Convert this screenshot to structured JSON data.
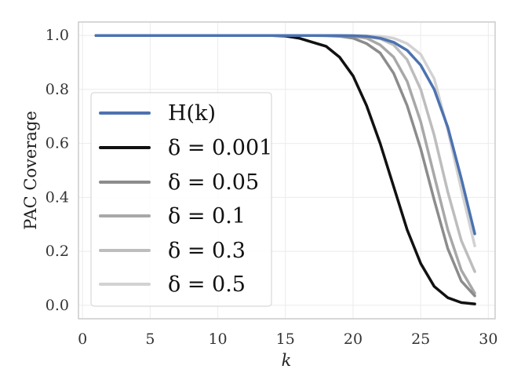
{
  "chart_data": {
    "type": "line",
    "title": "",
    "xlabel": "k",
    "ylabel": "PAC Coverage",
    "xlim": [
      -0.3,
      30.5
    ],
    "ylim": [
      -0.05,
      1.05
    ],
    "xticks": [
      0,
      5,
      10,
      15,
      20,
      25,
      30
    ],
    "yticks": [
      0.0,
      0.2,
      0.4,
      0.6,
      0.8,
      1.0
    ],
    "xtick_labels": [
      "0",
      "5",
      "10",
      "15",
      "20",
      "25",
      "30"
    ],
    "ytick_labels": [
      "0.0",
      "0.2",
      "0.4",
      "0.6",
      "0.8",
      "1.0"
    ],
    "grid": true,
    "legend_position": "left-middle",
    "x": [
      1,
      2,
      3,
      4,
      5,
      6,
      7,
      8,
      9,
      10,
      11,
      12,
      13,
      14,
      15,
      16,
      17,
      18,
      19,
      20,
      21,
      22,
      23,
      24,
      25,
      26,
      27,
      28,
      29
    ],
    "series": [
      {
        "name": "H(k)",
        "color": "#4c72b0",
        "values": [
          1,
          1,
          1,
          1,
          1,
          1,
          1,
          1,
          1,
          1,
          1,
          1,
          1,
          1,
          1,
          1,
          1,
          1,
          1,
          0.999,
          0.997,
          0.99,
          0.975,
          0.945,
          0.89,
          0.8,
          0.66,
          0.47,
          0.265
        ]
      },
      {
        "name": "δ = 0.001",
        "color": "#111111",
        "values": [
          1,
          1,
          1,
          1,
          1,
          1,
          1,
          1,
          1,
          1,
          1,
          1,
          1,
          1,
          0.998,
          0.99,
          0.975,
          0.96,
          0.92,
          0.85,
          0.74,
          0.6,
          0.44,
          0.28,
          0.155,
          0.07,
          0.028,
          0.01,
          0.005
        ]
      },
      {
        "name": "δ = 0.05",
        "color": "#8c8c8c",
        "values": [
          1,
          1,
          1,
          1,
          1,
          1,
          1,
          1,
          1,
          1,
          1,
          1,
          1,
          1,
          1,
          1,
          1,
          0.999,
          0.997,
          0.99,
          0.97,
          0.935,
          0.86,
          0.74,
          0.58,
          0.39,
          0.21,
          0.09,
          0.035
        ]
      },
      {
        "name": "δ = 0.1",
        "color": "#a8a8a8",
        "values": [
          1,
          1,
          1,
          1,
          1,
          1,
          1,
          1,
          1,
          1,
          1,
          1,
          1,
          1,
          1,
          1,
          1,
          1,
          0.999,
          0.997,
          0.99,
          0.965,
          0.92,
          0.83,
          0.68,
          0.48,
          0.28,
          0.13,
          0.045
        ]
      },
      {
        "name": "δ = 0.3",
        "color": "#bdbdbd",
        "values": [
          1,
          1,
          1,
          1,
          1,
          1,
          1,
          1,
          1,
          1,
          1,
          1,
          1,
          1,
          1,
          1,
          1,
          1,
          1,
          0.999,
          0.996,
          0.988,
          0.965,
          0.91,
          0.8,
          0.63,
          0.42,
          0.24,
          0.125
        ]
      },
      {
        "name": "δ = 0.5",
        "color": "#d2d2d2",
        "values": [
          1,
          1,
          1,
          1,
          1,
          1,
          1,
          1,
          1,
          1,
          1,
          1,
          1,
          1,
          1,
          1,
          1,
          1,
          1,
          1,
          0.999,
          0.997,
          0.99,
          0.97,
          0.93,
          0.84,
          0.65,
          0.43,
          0.22
        ]
      }
    ]
  }
}
